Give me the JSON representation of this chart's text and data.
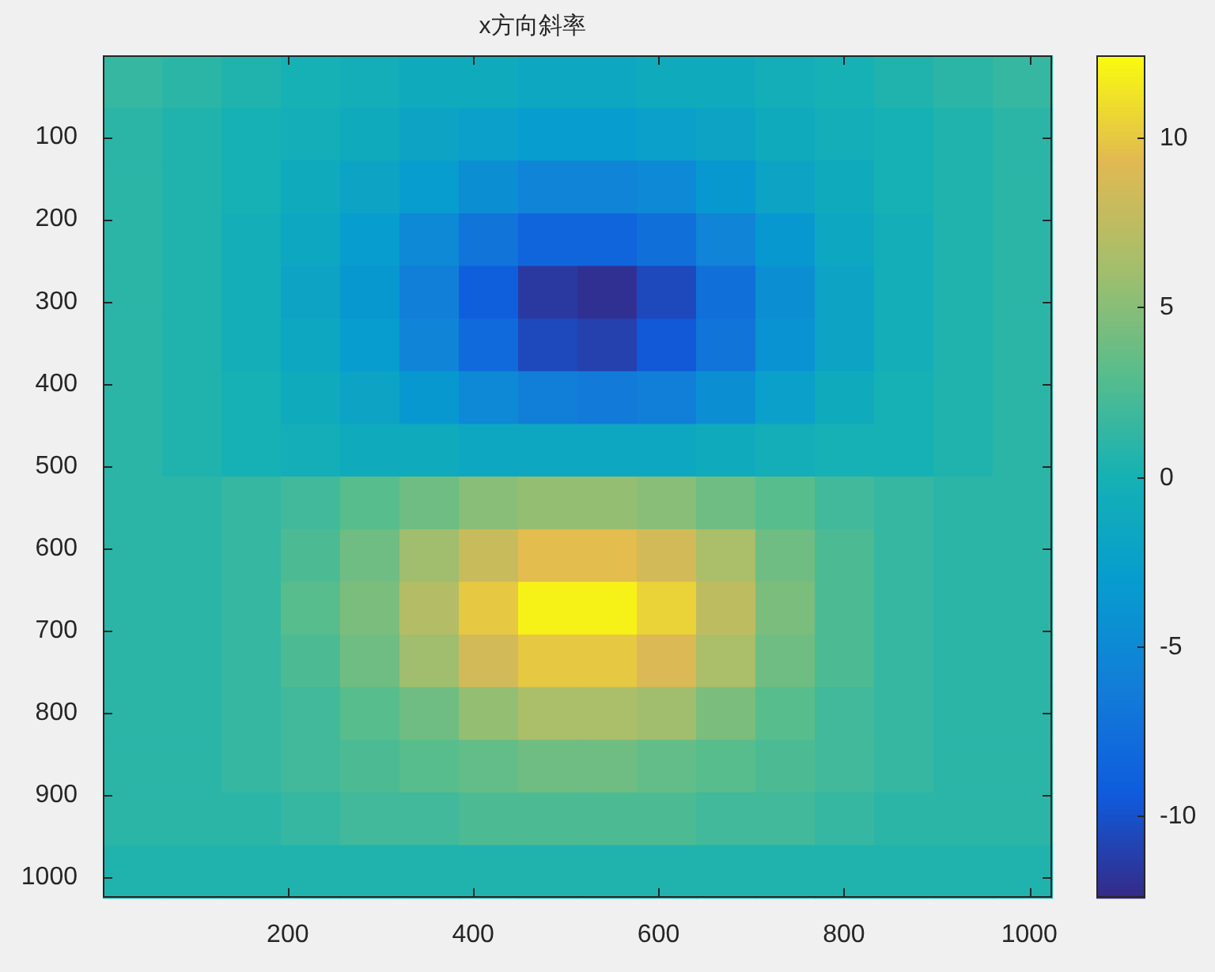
{
  "chart_data": {
    "type": "heatmap",
    "title": "x方向斜率",
    "x": [
      32.5,
      96.5,
      160.5,
      224.5,
      288.5,
      352.5,
      416.5,
      480.5,
      544.5,
      608.5,
      672.5,
      736.5,
      800.5,
      864.5,
      928.5,
      992.5
    ],
    "y": [
      32.5,
      96.5,
      160.5,
      224.5,
      288.5,
      352.5,
      416.5,
      480.5,
      544.5,
      608.5,
      672.5,
      736.5,
      800.5,
      864.5,
      928.5,
      992.5
    ],
    "xlim": [
      0.5,
      1024.5
    ],
    "xticks": [
      200,
      400,
      600,
      800,
      1000
    ],
    "ylim": [
      1024.5,
      0.5
    ],
    "yticks": [
      100,
      200,
      300,
      400,
      500,
      600,
      700,
      800,
      900,
      1000
    ],
    "clim": [
      -12.4,
      12.4
    ],
    "cticks": [
      -10,
      -5,
      0,
      5,
      10
    ],
    "cells": [
      [
        1.5,
        1,
        0.5,
        0,
        -0.5,
        -1,
        -1,
        -1.5,
        -1.5,
        -1,
        -1,
        -0.5,
        0,
        0.5,
        1,
        1.5
      ],
      [
        1,
        0.5,
        0,
        -0.5,
        -1,
        -2,
        -2.5,
        -3,
        -3,
        -2.5,
        -2,
        -1,
        -0.5,
        0,
        0.5,
        1
      ],
      [
        1,
        0.5,
        0,
        -1,
        -2,
        -3,
        -4.5,
        -5.5,
        -5.5,
        -5,
        -3.5,
        -2,
        -1,
        0,
        0.5,
        1
      ],
      [
        1,
        0.5,
        -0.5,
        -1.5,
        -3,
        -5,
        -7,
        -8.5,
        -8.5,
        -7.5,
        -5.5,
        -3.5,
        -1.5,
        -0.5,
        0.5,
        1
      ],
      [
        1,
        0.5,
        -0.5,
        -2,
        -3.5,
        -6,
        -9,
        -11.5,
        -12,
        -10.5,
        -7.5,
        -4.5,
        -2,
        -0.5,
        0.5,
        1
      ],
      [
        1,
        0.5,
        -0.5,
        -1.5,
        -3,
        -5.5,
        -8,
        -10.5,
        -11,
        -9.5,
        -7,
        -4,
        -2,
        -0.5,
        0.5,
        1
      ],
      [
        1,
        0.5,
        0,
        -1,
        -2,
        -3.5,
        -5,
        -6,
        -6.5,
        -6,
        -4.5,
        -2.5,
        -1,
        0,
        0.5,
        1
      ],
      [
        1,
        0.5,
        0,
        -0.5,
        -1,
        -1,
        -1.5,
        -1.5,
        -1.5,
        -1.5,
        -1,
        -0.5,
        0,
        0,
        0.5,
        1
      ],
      [
        1,
        1,
        1.5,
        2,
        3,
        4,
        5,
        5.5,
        5.5,
        5,
        4,
        3,
        2,
        1.5,
        1,
        1
      ],
      [
        1,
        1,
        1.5,
        2.5,
        4,
        6,
        8,
        9.5,
        9.5,
        8.5,
        6.5,
        4,
        2.5,
        1.5,
        1,
        1
      ],
      [
        1,
        1,
        1.5,
        3,
        4.5,
        7,
        10,
        12,
        12,
        10.5,
        7.5,
        4.5,
        2.5,
        1.5,
        1,
        1
      ],
      [
        1,
        1,
        1.5,
        2.5,
        4,
        6,
        8.5,
        10,
        10,
        9,
        6.5,
        4,
        2.5,
        1.5,
        1,
        1
      ],
      [
        1,
        1,
        1.5,
        2,
        3,
        4,
        5.5,
        6.5,
        6.5,
        6,
        4.5,
        3,
        2,
        1.5,
        1,
        1
      ],
      [
        1,
        1,
        1.5,
        2,
        2.5,
        3,
        3.5,
        4,
        4,
        3.5,
        3,
        2.5,
        2,
        1.5,
        1,
        1
      ],
      [
        1,
        1,
        1,
        1.5,
        2,
        2,
        2.5,
        2.5,
        2.5,
        2.5,
        2,
        2,
        1.5,
        1,
        1,
        1
      ],
      [
        0.5,
        0.5,
        0.5,
        0.5,
        0.5,
        0.5,
        0.5,
        0.5,
        0.5,
        0.5,
        0.5,
        0.5,
        0.5,
        0.5,
        0.5,
        0.5
      ]
    ]
  }
}
